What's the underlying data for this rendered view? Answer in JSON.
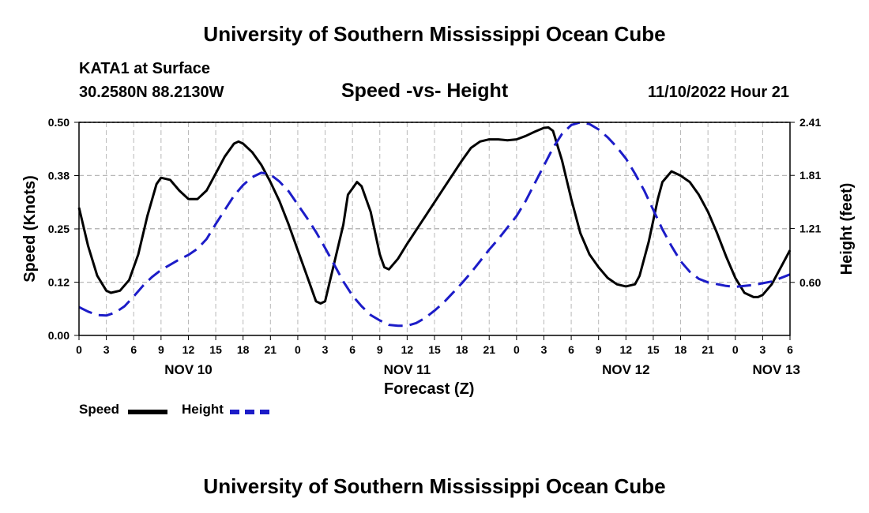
{
  "header": {
    "title": "University of Southern Mississippi Ocean Cube",
    "station": "KATA1 at Surface",
    "coords": "30.2580N  88.2130W",
    "datetime": "11/10/2022 Hour 21",
    "footer_title": "University of Southern Mississippi Ocean Cube"
  },
  "chart_data": {
    "type": "line",
    "title": "Speed -vs- Height",
    "xlabel": "Forecast (Z)",
    "ylabel": "Speed (Knots)",
    "y2label": "Height (feet)",
    "x_unit": "forecast hours from Nov 10 00Z",
    "xlim": [
      0,
      78
    ],
    "ylim": [
      0,
      0.5
    ],
    "y2lim": [
      0,
      2.41
    ],
    "y_ticks": [
      0.0,
      0.125,
      0.25,
      0.375,
      0.5
    ],
    "y_tick_labels": [
      "0.00",
      "0.12",
      "0.25",
      "0.38",
      "0.50"
    ],
    "y2_ticks": [
      0.6,
      1.21,
      1.81,
      2.41
    ],
    "y2_tick_labels": [
      "0.60",
      "1.21",
      "1.81",
      "2.41"
    ],
    "x_ticks": [
      0,
      3,
      6,
      9,
      12,
      15,
      18,
      21,
      24,
      27,
      30,
      33,
      36,
      39,
      42,
      45,
      48,
      51,
      54,
      57,
      60,
      63,
      66,
      69,
      72,
      75,
      78
    ],
    "x_tick_labels": [
      "0",
      "3",
      "6",
      "9",
      "12",
      "15",
      "18",
      "21",
      "0",
      "3",
      "6",
      "9",
      "12",
      "15",
      "18",
      "21",
      "0",
      "3",
      "6",
      "9",
      "12",
      "15",
      "18",
      "21",
      "0",
      "3",
      "6"
    ],
    "day_labels": [
      {
        "x": 12,
        "label": "NOV 10"
      },
      {
        "x": 36,
        "label": "NOV 11"
      },
      {
        "x": 60,
        "label": "NOV 12"
      },
      {
        "x": 76.5,
        "label": "NOV 13"
      }
    ],
    "grid": true,
    "series": [
      {
        "name": "Speed",
        "axis": "left",
        "color": "#000000",
        "style": "solid",
        "points": [
          [
            0,
            0.3
          ],
          [
            1,
            0.21
          ],
          [
            2,
            0.14
          ],
          [
            3,
            0.105
          ],
          [
            3.5,
            0.1
          ],
          [
            4.5,
            0.105
          ],
          [
            5.5,
            0.13
          ],
          [
            6.5,
            0.19
          ],
          [
            7.5,
            0.28
          ],
          [
            8.5,
            0.355
          ],
          [
            9,
            0.37
          ],
          [
            10,
            0.365
          ],
          [
            11,
            0.34
          ],
          [
            12,
            0.32
          ],
          [
            13,
            0.32
          ],
          [
            14,
            0.34
          ],
          [
            15,
            0.38
          ],
          [
            16,
            0.42
          ],
          [
            17,
            0.45
          ],
          [
            17.5,
            0.455
          ],
          [
            18,
            0.45
          ],
          [
            19,
            0.43
          ],
          [
            20,
            0.4
          ],
          [
            21,
            0.36
          ],
          [
            22,
            0.315
          ],
          [
            23,
            0.26
          ],
          [
            24,
            0.2
          ],
          [
            25,
            0.14
          ],
          [
            26,
            0.08
          ],
          [
            26.5,
            0.075
          ],
          [
            27,
            0.08
          ],
          [
            28,
            0.17
          ],
          [
            29,
            0.26
          ],
          [
            29.5,
            0.33
          ],
          [
            30,
            0.345
          ],
          [
            30.5,
            0.36
          ],
          [
            31,
            0.35
          ],
          [
            32,
            0.29
          ],
          [
            33,
            0.19
          ],
          [
            33.5,
            0.16
          ],
          [
            34,
            0.155
          ],
          [
            35,
            0.18
          ],
          [
            36,
            0.215
          ],
          [
            38,
            0.28
          ],
          [
            40,
            0.345
          ],
          [
            42,
            0.41
          ],
          [
            43,
            0.44
          ],
          [
            44,
            0.455
          ],
          [
            45,
            0.46
          ],
          [
            46,
            0.46
          ],
          [
            47,
            0.458
          ],
          [
            48,
            0.46
          ],
          [
            49,
            0.468
          ],
          [
            50,
            0.478
          ],
          [
            51,
            0.487
          ],
          [
            51.5,
            0.488
          ],
          [
            52,
            0.48
          ],
          [
            53,
            0.41
          ],
          [
            54,
            0.32
          ],
          [
            55,
            0.24
          ],
          [
            56,
            0.19
          ],
          [
            57,
            0.16
          ],
          [
            58,
            0.135
          ],
          [
            59,
            0.12
          ],
          [
            60,
            0.115
          ],
          [
            61,
            0.12
          ],
          [
            61.5,
            0.14
          ],
          [
            62.5,
            0.22
          ],
          [
            63.5,
            0.32
          ],
          [
            64,
            0.36
          ],
          [
            65,
            0.385
          ],
          [
            66,
            0.375
          ],
          [
            67,
            0.36
          ],
          [
            68,
            0.33
          ],
          [
            69,
            0.29
          ],
          [
            70,
            0.24
          ],
          [
            71,
            0.185
          ],
          [
            72,
            0.135
          ],
          [
            73,
            0.1
          ],
          [
            74,
            0.09
          ],
          [
            74.5,
            0.09
          ],
          [
            75,
            0.095
          ],
          [
            76,
            0.12
          ],
          [
            77,
            0.16
          ],
          [
            78,
            0.2
          ]
        ]
      },
      {
        "name": "Height",
        "axis": "right",
        "color": "#1c1cc8",
        "style": "dashed",
        "points": [
          [
            0,
            0.32
          ],
          [
            1,
            0.27
          ],
          [
            2,
            0.23
          ],
          [
            3,
            0.225
          ],
          [
            4,
            0.26
          ],
          [
            5,
            0.33
          ],
          [
            6,
            0.44
          ],
          [
            7,
            0.56
          ],
          [
            8,
            0.66
          ],
          [
            9,
            0.74
          ],
          [
            10,
            0.8
          ],
          [
            11,
            0.86
          ],
          [
            12,
            0.91
          ],
          [
            13,
            0.98
          ],
          [
            14,
            1.09
          ],
          [
            15,
            1.26
          ],
          [
            16,
            1.42
          ],
          [
            17,
            1.58
          ],
          [
            18,
            1.7
          ],
          [
            19,
            1.79
          ],
          [
            20,
            1.84
          ],
          [
            21,
            1.82
          ],
          [
            22,
            1.74
          ],
          [
            23,
            1.63
          ],
          [
            24,
            1.48
          ],
          [
            25,
            1.33
          ],
          [
            26,
            1.17
          ],
          [
            27,
            0.99
          ],
          [
            28,
            0.8
          ],
          [
            29,
            0.61
          ],
          [
            30,
            0.45
          ],
          [
            31,
            0.33
          ],
          [
            32,
            0.23
          ],
          [
            33,
            0.17
          ],
          [
            34,
            0.12
          ],
          [
            35,
            0.11
          ],
          [
            36,
            0.11
          ],
          [
            37,
            0.14
          ],
          [
            38,
            0.2
          ],
          [
            39,
            0.28
          ],
          [
            40,
            0.37
          ],
          [
            41,
            0.48
          ],
          [
            42,
            0.59
          ],
          [
            43,
            0.71
          ],
          [
            44,
            0.84
          ],
          [
            45,
            0.97
          ],
          [
            46,
            1.09
          ],
          [
            47,
            1.22
          ],
          [
            48,
            1.35
          ],
          [
            49,
            1.52
          ],
          [
            50,
            1.72
          ],
          [
            51,
            1.92
          ],
          [
            52,
            2.12
          ],
          [
            53,
            2.28
          ],
          [
            54,
            2.38
          ],
          [
            55,
            2.41
          ],
          [
            56,
            2.39
          ],
          [
            57,
            2.33
          ],
          [
            58,
            2.24
          ],
          [
            59,
            2.13
          ],
          [
            60,
            2.0
          ],
          [
            61,
            1.83
          ],
          [
            62,
            1.64
          ],
          [
            63,
            1.42
          ],
          [
            64,
            1.2
          ],
          [
            65,
            1.01
          ],
          [
            66,
            0.84
          ],
          [
            67,
            0.72
          ],
          [
            68,
            0.64
          ],
          [
            69,
            0.6
          ],
          [
            70,
            0.58
          ],
          [
            71,
            0.56
          ],
          [
            72,
            0.55
          ],
          [
            73,
            0.56
          ],
          [
            74,
            0.57
          ],
          [
            75,
            0.59
          ],
          [
            76,
            0.61
          ],
          [
            77,
            0.65
          ],
          [
            78,
            0.69
          ]
        ]
      }
    ]
  },
  "legend": {
    "items": [
      {
        "label": "Speed",
        "color": "#000000",
        "style": "solid"
      },
      {
        "label": "Height",
        "color": "#1c1cc8",
        "style": "dashed"
      }
    ]
  }
}
